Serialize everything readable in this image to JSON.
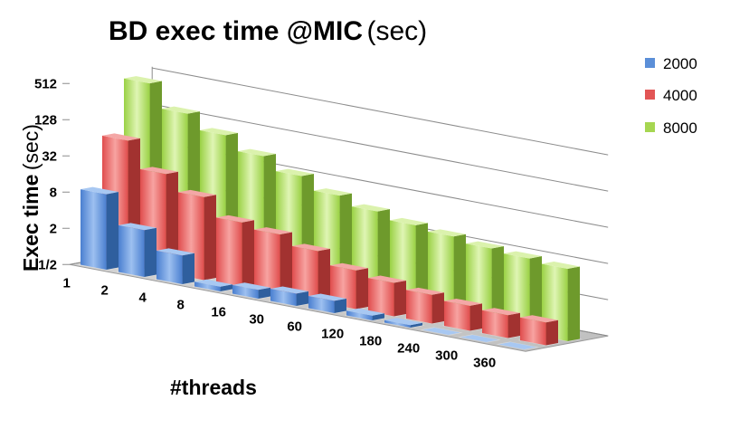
{
  "chart_data": {
    "type": "bar",
    "style": "3d-clustered-depth",
    "title": "BD exec time @MIC",
    "title_suffix": "(sec)",
    "xlabel": "#threads",
    "ylabel": "Exec time",
    "ylabel_suffix": "(sec)",
    "y_scale": "log2",
    "ylim": [
      0.5,
      512
    ],
    "y_ticks": [
      "1/2",
      "2",
      "8",
      "32",
      "128",
      "512"
    ],
    "y_tick_values": [
      0.5,
      2,
      8,
      32,
      128,
      512
    ],
    "categories": [
      "1",
      "2",
      "4",
      "8",
      "16",
      "30",
      "60",
      "120",
      "180",
      "240",
      "300",
      "360"
    ],
    "legend_position": "top-right",
    "grid": true,
    "series": [
      {
        "name": "2000",
        "color": "#4f81bd",
        "values": [
          9,
          3,
          1.5,
          0.6,
          0.7,
          0.8,
          0.8,
          0.6,
          0.55,
          0.5,
          0.5,
          0.5
        ]
      },
      {
        "name": "4000",
        "color": "#c0504d",
        "values": [
          60,
          22,
          12,
          6,
          5,
          3.5,
          2.2,
          1.8,
          1.5,
          1.3,
          1.2,
          1.2
        ]
      },
      {
        "name": "8000",
        "color": "#9bbb59",
        "values": [
          460,
          190,
          110,
          65,
          40,
          25,
          18,
          14,
          12,
          10,
          9,
          8
        ]
      }
    ]
  }
}
